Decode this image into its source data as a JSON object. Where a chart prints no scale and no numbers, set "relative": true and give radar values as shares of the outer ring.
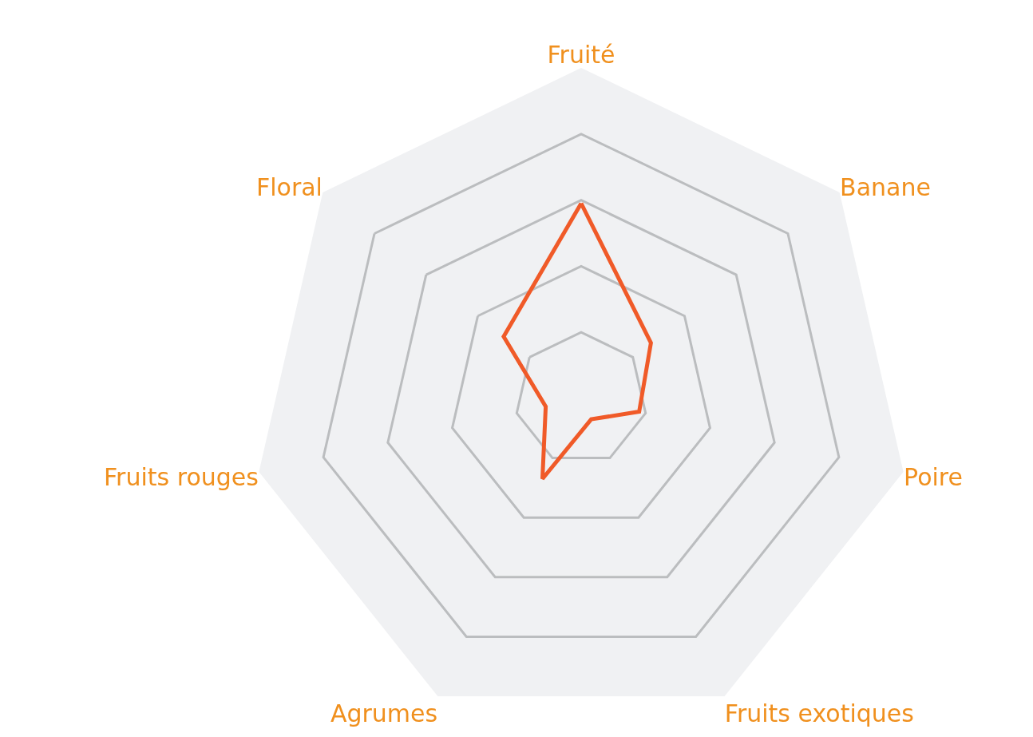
{
  "chart_data": {
    "type": "radar",
    "relative": true,
    "categories": [
      "Fruité",
      "Banane",
      "Poire",
      "Fruits exotiques",
      "Agrumes",
      "Fruits rouges",
      "Floral"
    ],
    "series": [
      {
        "color": "#f05a28",
        "values": [
          0.59,
          0.27,
          0.18,
          0.07,
          0.27,
          0.11,
          0.3
        ]
      }
    ],
    "grid": true,
    "marker": "none",
    "line_style": "solid"
  }
}
